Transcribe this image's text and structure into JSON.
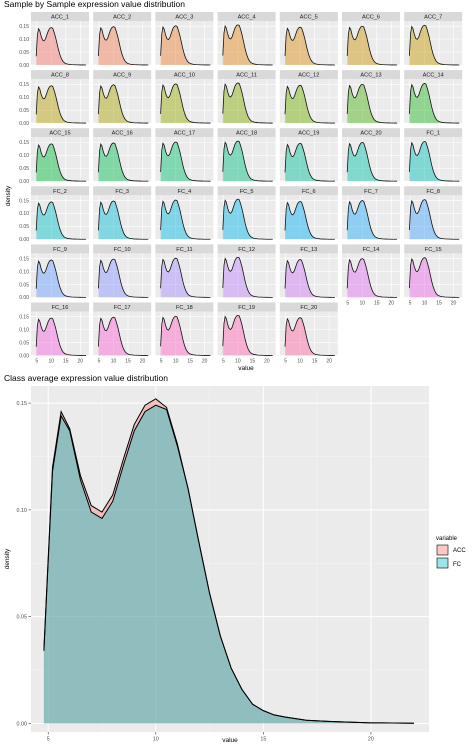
{
  "chart_data": [
    {
      "type": "area",
      "title": "Sample by Sample expression value distribution",
      "xlabel": "value",
      "ylabel": "density",
      "facets": [
        "ACC_1",
        "ACC_2",
        "ACC_3",
        "ACC_4",
        "ACC_5",
        "ACC_6",
        "ACC_7",
        "ACC_8",
        "ACC_9",
        "ACC_10",
        "ACC_11",
        "ACC_12",
        "ACC_13",
        "ACC_14",
        "ACC_15",
        "ACC_16",
        "ACC_17",
        "ACC_18",
        "ACC_19",
        "ACC_20",
        "FC_1",
        "FC_2",
        "FC_3",
        "FC_4",
        "FC_5",
        "FC_6",
        "FC_7",
        "FC_8",
        "FC_9",
        "FC_10",
        "FC_11",
        "FC_12",
        "FC_13",
        "FC_14",
        "FC_15",
        "FC_16",
        "FC_17",
        "FC_18",
        "FC_19",
        "FC_20"
      ],
      "facet_columns": 7,
      "xlim": [
        3,
        23
      ],
      "ylim": [
        0,
        0.17
      ],
      "xticks": [
        "5",
        "10",
        "15",
        "20"
      ],
      "yticks": [
        "0.00",
        "0.05",
        "0.10",
        "0.15"
      ],
      "grid": true,
      "x": [
        4.8,
        5.2,
        5.6,
        6.0,
        6.5,
        7.0,
        7.5,
        8.0,
        8.5,
        9.0,
        9.5,
        10.0,
        10.5,
        11.0,
        11.5,
        12.0,
        12.5,
        13.0,
        13.5,
        14.0,
        14.5,
        15.0,
        15.5,
        16.0,
        17.0,
        18.0,
        19.0,
        20.0,
        21.0,
        22.0
      ],
      "values": [
        0.035,
        0.12,
        0.145,
        0.138,
        0.115,
        0.1,
        0.097,
        0.105,
        0.122,
        0.138,
        0.147,
        0.15,
        0.147,
        0.13,
        0.11,
        0.085,
        0.06,
        0.04,
        0.025,
        0.015,
        0.009,
        0.006,
        0.004,
        0.003,
        0.0015,
        0.001,
        0.0006,
        0.0003,
        0.0002,
        0.0001
      ]
    },
    {
      "type": "area",
      "title": "Class average expression value distribution",
      "xlabel": "value",
      "ylabel": "density",
      "xlim": [
        4.2,
        22.7
      ],
      "ylim": [
        -0.004,
        0.158
      ],
      "xticks": [
        5,
        10,
        15,
        20
      ],
      "yticks": [
        0.0,
        0.05,
        0.1,
        0.15
      ],
      "ytick_labels": [
        "0.00",
        "0.05",
        "0.10",
        "0.15"
      ],
      "grid": true,
      "legend": {
        "title": "variable",
        "position": "right",
        "entries": [
          "ACC",
          "FC"
        ]
      },
      "colors": {
        "ACC": "#f8766d",
        "FC": "#00bfc4"
      },
      "series": [
        {
          "name": "ACC",
          "x": [
            4.8,
            5.2,
            5.6,
            6.0,
            6.5,
            7.0,
            7.5,
            8.0,
            8.5,
            9.0,
            9.5,
            10.0,
            10.5,
            11.0,
            11.5,
            12.0,
            12.5,
            13.0,
            13.5,
            14.0,
            14.5,
            15.0,
            15.5,
            16.0,
            17.0,
            18.0,
            19.0,
            20.0,
            21.0,
            22.0
          ],
          "values": [
            0.035,
            0.12,
            0.146,
            0.138,
            0.116,
            0.102,
            0.099,
            0.107,
            0.124,
            0.14,
            0.149,
            0.152,
            0.148,
            0.131,
            0.11,
            0.085,
            0.061,
            0.041,
            0.026,
            0.016,
            0.009,
            0.006,
            0.004,
            0.003,
            0.0015,
            0.001,
            0.0006,
            0.0003,
            0.0002,
            0.0001
          ]
        },
        {
          "name": "FC",
          "x": [
            4.8,
            5.2,
            5.6,
            6.0,
            6.5,
            7.0,
            7.5,
            8.0,
            8.5,
            9.0,
            9.5,
            10.0,
            10.5,
            11.0,
            11.5,
            12.0,
            12.5,
            13.0,
            13.5,
            14.0,
            14.5,
            15.0,
            15.5,
            16.0,
            17.0,
            18.0,
            19.0,
            20.0,
            21.0,
            22.0
          ],
          "values": [
            0.034,
            0.118,
            0.144,
            0.137,
            0.114,
            0.099,
            0.096,
            0.104,
            0.121,
            0.137,
            0.146,
            0.149,
            0.147,
            0.13,
            0.11,
            0.085,
            0.061,
            0.041,
            0.026,
            0.016,
            0.009,
            0.006,
            0.004,
            0.003,
            0.0015,
            0.001,
            0.0006,
            0.0003,
            0.0002,
            0.0001
          ]
        }
      ]
    }
  ]
}
